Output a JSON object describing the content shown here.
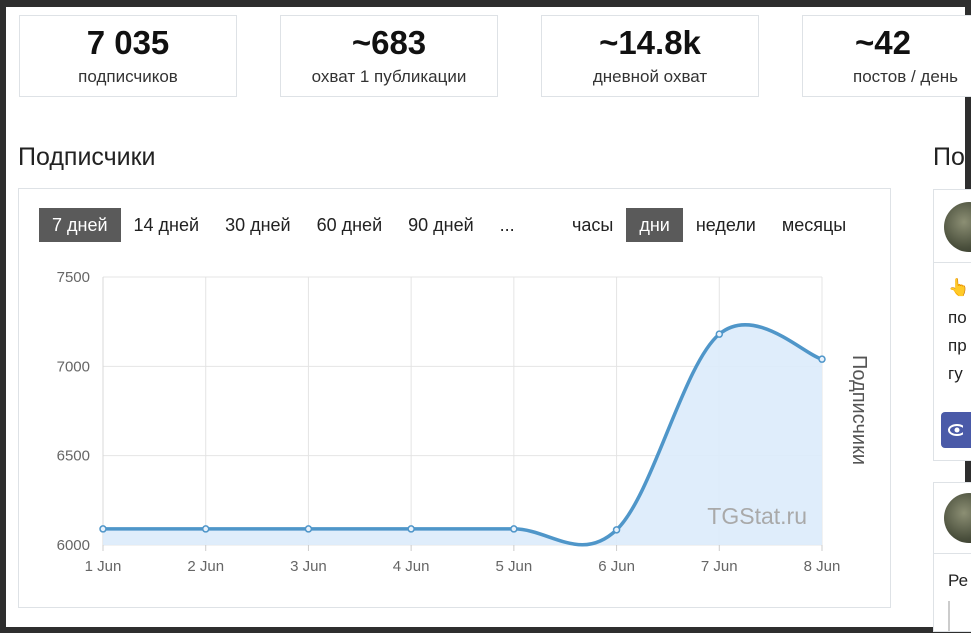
{
  "stats": [
    {
      "value": "7 035",
      "label": "подписчиков"
    },
    {
      "value": "~683",
      "label": "охват 1 публикации"
    },
    {
      "value": "~14.8k",
      "label": "дневной охват"
    },
    {
      "value": "~42",
      "label": "постов / день"
    }
  ],
  "section": {
    "title": "Подписчики",
    "right_title": "По"
  },
  "period_buttons": [
    "7 дней",
    "14 дней",
    "30 дней",
    "60 дней",
    "90 дней",
    "..."
  ],
  "period_active": "7 дней",
  "granularity_buttons": [
    "часы",
    "дни",
    "недели",
    "месяцы"
  ],
  "granularity_active": "дни",
  "watermark": "TGStat.ru",
  "side_posts": {
    "post1_lines": [
      "👆",
      "по",
      "пр",
      "гу"
    ],
    "post2_lines": [
      "Ре"
    ],
    "eye_icon": "eye-icon"
  },
  "colors": {
    "line": "#4f96c9",
    "fill": "#dcebfb",
    "active_button": "#5a5a5a"
  },
  "chart_data": {
    "type": "area",
    "categories": [
      "1 Jun",
      "2 Jun",
      "3 Jun",
      "4 Jun",
      "5 Jun",
      "6 Jun",
      "7 Jun",
      "8 Jun"
    ],
    "series": [
      {
        "name": "Подписчики",
        "values": [
          6090,
          6090,
          6090,
          6090,
          6090,
          6085,
          7180,
          7040
        ]
      }
    ],
    "ylabel": "Подписчики",
    "ylim": [
      6000,
      7500
    ],
    "yticks": [
      6000,
      6500,
      7000,
      7500
    ],
    "grid": true,
    "legend": "none"
  }
}
